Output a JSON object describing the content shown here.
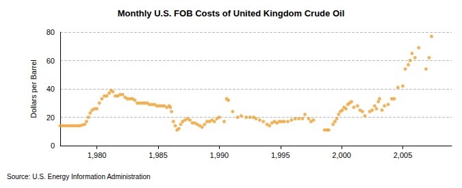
{
  "chart_data": {
    "type": "scatter",
    "title": "Monthly U.S. FOB Costs of United Kingdom Crude Oil",
    "y_label": "Dollars per Barrel",
    "source": "Source: U.S. Energy Information Administration",
    "x": [
      1977.0,
      1977.2,
      1977.4,
      1977.6,
      1977.8,
      1978.0,
      1978.2,
      1978.4,
      1978.6,
      1978.8,
      1979.0,
      1979.15,
      1979.3,
      1979.45,
      1979.6,
      1979.8,
      1980.0,
      1980.2,
      1980.4,
      1980.6,
      1980.8,
      1981.0,
      1981.15,
      1981.3,
      1981.5,
      1981.7,
      1981.9,
      1982.1,
      1982.3,
      1982.5,
      1982.7,
      1982.9,
      1983.1,
      1983.3,
      1983.5,
      1983.7,
      1983.9,
      1984.1,
      1984.3,
      1984.5,
      1984.7,
      1984.9,
      1985.1,
      1985.3,
      1985.5,
      1985.7,
      1985.9,
      1986.0,
      1986.1,
      1986.25,
      1986.4,
      1986.55,
      1986.7,
      1986.85,
      1987.0,
      1987.2,
      1987.4,
      1987.6,
      1987.8,
      1988.0,
      1988.2,
      1988.4,
      1988.6,
      1988.8,
      1989.0,
      1989.2,
      1989.4,
      1989.6,
      1989.8,
      1990.0,
      1990.4,
      1990.6,
      1990.75,
      1991.1,
      1991.5,
      1991.8,
      1992.2,
      1992.5,
      1992.8,
      1993.0,
      1993.3,
      1993.6,
      1993.9,
      1994.1,
      1994.3,
      1994.5,
      1994.7,
      1994.9,
      1995.1,
      1995.3,
      1995.6,
      1995.9,
      1996.2,
      1996.5,
      1996.8,
      1997.0,
      1997.3,
      1997.5,
      1997.7,
      1998.6,
      1998.8,
      1998.95,
      1999.3,
      1999.45,
      1999.6,
      1999.75,
      1999.9,
      2000.05,
      2000.2,
      2000.35,
      2000.5,
      2000.65,
      2000.8,
      2001.0,
      2001.3,
      2001.5,
      2001.7,
      2001.9,
      2002.3,
      2002.5,
      2002.7,
      2002.85,
      2003.0,
      2003.1,
      2003.3,
      2003.5,
      2003.8,
      2004.1,
      2004.3,
      2004.6,
      2005.0,
      2005.2,
      2005.45,
      2005.6,
      2005.75,
      2006.0,
      2006.3,
      2006.9,
      2007.15,
      2007.35
    ],
    "values": [
      14,
      14,
      14,
      14,
      14,
      14,
      14,
      14,
      14,
      14.5,
      15,
      17,
      20,
      23,
      25,
      26,
      26,
      30,
      33,
      35,
      35,
      37,
      39,
      38,
      35,
      35,
      36,
      36,
      34,
      33,
      33,
      33,
      32,
      30,
      30,
      30,
      30,
      30,
      29,
      29,
      29,
      28,
      28,
      28,
      28,
      27,
      28,
      27,
      24,
      17,
      14,
      11,
      12,
      15,
      17,
      18,
      19,
      18,
      16,
      16,
      15,
      14,
      13,
      15,
      17,
      17,
      18,
      17,
      19,
      20,
      17,
      33,
      32,
      24,
      20,
      21,
      20,
      20,
      20,
      19,
      18,
      17,
      15,
      14,
      16,
      17,
      16,
      17,
      17,
      17,
      17,
      18,
      19,
      19,
      19,
      22,
      19,
      17,
      18,
      11,
      11,
      11,
      15,
      17,
      19,
      22,
      24,
      25,
      27,
      26,
      29,
      30,
      31,
      27,
      28,
      25,
      24,
      21,
      24,
      25,
      28,
      26,
      31,
      33,
      25,
      28,
      29,
      33,
      33,
      41,
      42,
      54,
      57,
      60,
      65,
      62,
      69,
      54,
      62,
      77
    ],
    "color": "#f0a030",
    "marker": "circle",
    "xlim": [
      1977,
      2009
    ],
    "xticks": [
      1980,
      1985,
      1990,
      1995,
      2000,
      2005
    ],
    "ylim": [
      0,
      80
    ],
    "yticks": [
      0,
      20,
      40,
      60,
      80
    ],
    "grid": true
  }
}
